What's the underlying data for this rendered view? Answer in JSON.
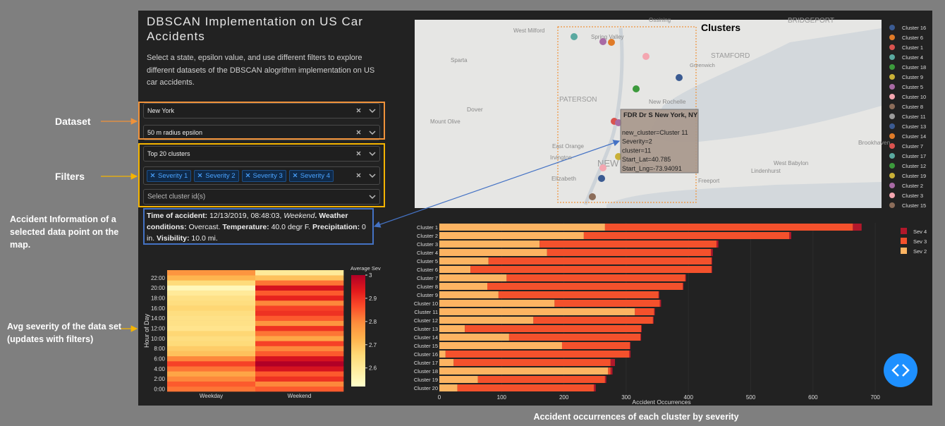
{
  "annotations": {
    "dataset": "Dataset",
    "filters": "Filters",
    "info": "Accident Information of a selected data point on the map.",
    "heatmap": "Avg severity of the data set (updates with filters)",
    "clusters": "Clusters",
    "bar": "Accident occurrences of each cluster by severity"
  },
  "app": {
    "title": "DBSCAN Implementation on US Car Accidents",
    "description": "Select a state, epsilon value, and use different filters to explore different datasets of the DBSCAN alogrithm implementation on US car accidents.",
    "state": "New York",
    "epsilon": "50 m radius epsilon",
    "clusters_filter": "Top 20 clusters",
    "severity_chips": [
      "Severity 1",
      "Severity 2",
      "Severity 3",
      "Severity 4"
    ],
    "cluster_placeholder": "Select cluster id(s)",
    "info": [
      {
        "text": "Time of accident:",
        "bold": true
      },
      {
        "text": " 12/13/2019, 08:48:03, "
      },
      {
        "text": "Weekend",
        "italic": true
      },
      {
        "text": ". Weather conditions:",
        "bold": true
      },
      {
        "text": " Overcast. "
      },
      {
        "text": "Temperature:",
        "bold": true
      },
      {
        "text": " 40.0 degr F. "
      },
      {
        "text": "Precipitation:",
        "bold": true
      },
      {
        "text": " 0 in. "
      },
      {
        "text": "Visibility:",
        "bold": true
      },
      {
        "text": " 10.0 mi."
      }
    ]
  },
  "map": {
    "labels": [
      "Ossining",
      "West Milford",
      "Spring Valley",
      "BRIDGEPORT",
      "Sparta",
      "STAMFORD",
      "Greenwich",
      "New Rochelle",
      "Dover",
      "PATERSON",
      "Mount Olive",
      "East Orange",
      "Irvington",
      "NEW YORK",
      "Elizabeth",
      "Freeport",
      "Brookhaven",
      "Lindenhurst",
      "West Babylon"
    ],
    "tooltip": {
      "title": "FDR Dr S New York, NY",
      "lines": [
        "new_cluster=Cluster 11",
        "Severity=2",
        "cluster=11",
        "Start_Lat=40.785",
        "Start_Lng=-73.94091"
      ]
    },
    "legend": [
      {
        "name": "Cluster 16",
        "color": "#3b5b92"
      },
      {
        "name": "Cluster 6",
        "color": "#e07b28"
      },
      {
        "name": "Cluster 1",
        "color": "#d9534f"
      },
      {
        "name": "Cluster 4",
        "color": "#5aa9a0"
      },
      {
        "name": "Cluster 18",
        "color": "#3c9a3c"
      },
      {
        "name": "Cluster 9",
        "color": "#c9b037"
      },
      {
        "name": "Cluster 5",
        "color": "#a86aa4"
      },
      {
        "name": "Cluster 10",
        "color": "#f4a6b0"
      },
      {
        "name": "Cluster 8",
        "color": "#8c6d5a"
      },
      {
        "name": "Cluster 11",
        "color": "#9b9b9b"
      },
      {
        "name": "Cluster 13",
        "color": "#3b5b92"
      },
      {
        "name": "Cluster 14",
        "color": "#e07b28"
      },
      {
        "name": "Cluster 7",
        "color": "#d9534f"
      },
      {
        "name": "Cluster 17",
        "color": "#5aa9a0"
      },
      {
        "name": "Cluster 12",
        "color": "#3c9a3c"
      },
      {
        "name": "Cluster 19",
        "color": "#c9b037"
      },
      {
        "name": "Cluster 2",
        "color": "#a86aa4"
      },
      {
        "name": "Cluster 3",
        "color": "#f4a6b0"
      },
      {
        "name": "Cluster 15",
        "color": "#8c6d5a"
      }
    ]
  },
  "chart_data": [
    {
      "type": "heatmap",
      "categories": [
        "Weekday",
        "Weekend"
      ],
      "y": [
        "0:00",
        null,
        "2:00",
        null,
        "4:00",
        null,
        "6:00",
        null,
        "8:00",
        null,
        "10:00",
        null,
        "12:00",
        null,
        "14:00",
        null,
        "16:00",
        null,
        "18:00",
        null,
        "20:00",
        null,
        "22:00",
        null
      ],
      "z": [
        [
          2.82,
          2.85
        ],
        [
          2.85,
          2.8
        ],
        [
          2.8,
          2.9
        ],
        [
          2.75,
          2.85
        ],
        [
          2.82,
          2.95
        ],
        [
          2.88,
          3.0
        ],
        [
          2.8,
          2.95
        ],
        [
          2.7,
          2.85
        ],
        [
          2.68,
          2.8
        ],
        [
          2.65,
          2.88
        ],
        [
          2.64,
          2.75
        ],
        [
          2.66,
          2.82
        ],
        [
          2.62,
          2.9
        ],
        [
          2.63,
          2.78
        ],
        [
          2.63,
          2.85
        ],
        [
          2.64,
          2.9
        ],
        [
          2.66,
          2.88
        ],
        [
          2.64,
          2.8
        ],
        [
          2.63,
          2.92
        ],
        [
          2.6,
          2.85
        ],
        [
          2.55,
          2.95
        ],
        [
          2.65,
          2.82
        ],
        [
          2.72,
          2.7
        ],
        [
          2.78,
          2.6
        ]
      ],
      "ylabel": "Hour of Day",
      "colorbar_title": "Average Sev",
      "zlim": [
        2.52,
        3
      ],
      "zticks": [
        2.6,
        2.7,
        2.8,
        2.9,
        3
      ],
      "colorscale": [
        "#ffffcc",
        "#ffeda0",
        "#fed976",
        "#feb24c",
        "#fd8d3c",
        "#fc4e2a",
        "#e31a1c",
        "#b10026"
      ]
    },
    {
      "type": "bar",
      "orientation": "horizontal",
      "stacked": true,
      "categories": [
        "Cluster 1",
        "Cluster 2",
        "Cluster 3",
        "Cluster 4",
        "Cluster 5",
        "Cluster 6",
        "Cluster 7",
        "Cluster 8",
        "Cluster 9",
        "Cluster 10",
        "Cluster 11",
        "Cluster 12",
        "Cluster 13",
        "Cluster 14",
        "Cluster 15",
        "Cluster 16",
        "Cluster 17",
        "Cluster 18",
        "Cluster 19",
        "Cluster 20"
      ],
      "series": [
        {
          "name": "Sev 2",
          "color": "#fdb462",
          "values": [
            266,
            232,
            161,
            173,
            79,
            50,
            108,
            77,
            95,
            185,
            314,
            151,
            41,
            112,
            197,
            10,
            23,
            271,
            62,
            29
          ]
        },
        {
          "name": "Sev 3",
          "color": "#f4512c",
          "values": [
            398,
            330,
            284,
            263,
            358,
            387,
            287,
            314,
            257,
            169,
            31,
            192,
            283,
            211,
            109,
            295,
            252,
            4,
            204,
            219
          ]
        },
        {
          "name": "Sev 4",
          "color": "#b2182b",
          "values": [
            14,
            3,
            3,
            3,
            1,
            1,
            1,
            1,
            1,
            2,
            1,
            1,
            1,
            1,
            1,
            2,
            7,
            3,
            2,
            3
          ]
        }
      ],
      "xlim": [
        0,
        710
      ],
      "xticks": [
        0,
        100,
        200,
        300,
        400,
        500,
        600,
        700
      ],
      "xlabel": "Accident Occurrences"
    }
  ]
}
